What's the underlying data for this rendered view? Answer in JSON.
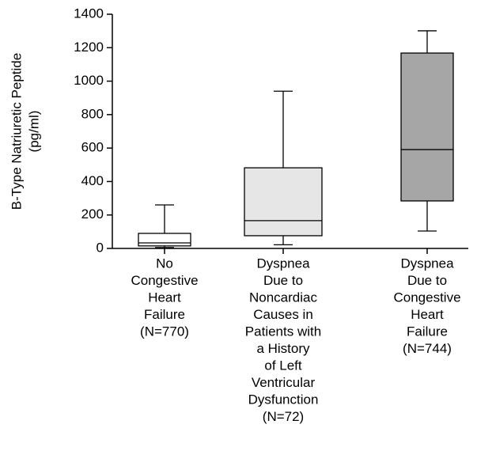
{
  "chart_data": {
    "type": "box",
    "y_label": [
      "B-Type Natriuretic Peptide",
      "(pg/ml)"
    ],
    "categories": [
      [
        "No",
        "Congestive",
        "Heart",
        "Failure",
        "(N=770)"
      ],
      [
        "Dyspnea",
        "Due to",
        "Noncardiac",
        "Causes in",
        "Patients with",
        "a History",
        "of Left",
        "Ventricular",
        "Dysfunction",
        "(N=72)"
      ],
      [
        "Dyspnea",
        "Due to",
        "Congestive",
        "Heart",
        "Failure",
        "(N=744)"
      ]
    ],
    "boxes": [
      {
        "min": 5,
        "q1": 15,
        "median": 33,
        "q3": 90,
        "max": 260,
        "color": "#ffffff"
      },
      {
        "min": 22,
        "q1": 76,
        "median": 166,
        "q3": 482,
        "max": 940,
        "color": "#e6e6e6"
      },
      {
        "min": 104,
        "q1": 284,
        "median": 591,
        "q3": 1168,
        "max": 1301,
        "color": "#a6a6a6"
      }
    ],
    "ylim": [
      0,
      1400
    ],
    "yticks": [
      0,
      200,
      400,
      600,
      800,
      1000,
      1200,
      1400
    ]
  }
}
